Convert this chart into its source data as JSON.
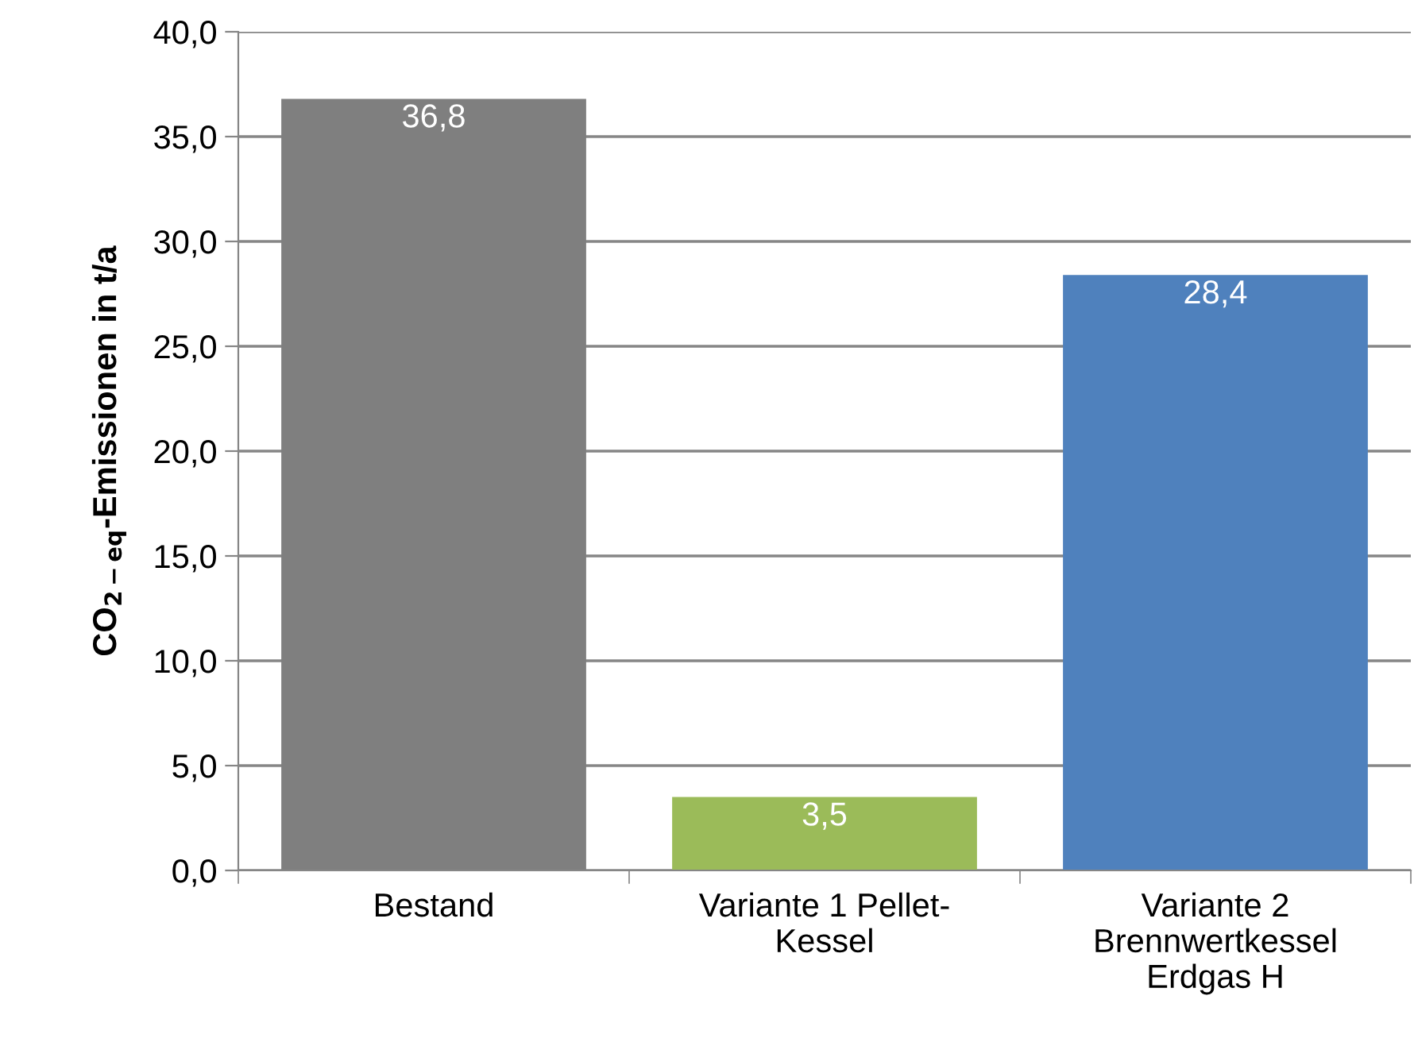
{
  "chart_data": {
    "type": "bar",
    "ylabel": "CO$_{2−eq}$-Emissionen in t/a",
    "categories": [
      "Bestand",
      "Variante 1 Pellet-Kessel",
      "Variante 2 Brennwertkessel Erdgas H"
    ],
    "values": [
      36.8,
      3.5,
      28.4
    ],
    "colors": [
      "#7f7f7f",
      "#9bbb59",
      "#4f81bd"
    ],
    "value_labels": [
      "36,8",
      "3,5",
      "28,4"
    ],
    "ylim": [
      0,
      40
    ],
    "yticks": [
      {
        "value": 0,
        "label": "0,0"
      },
      {
        "value": 5,
        "label": "5,0"
      },
      {
        "value": 10,
        "label": "10,0"
      },
      {
        "value": 15,
        "label": "15,0"
      },
      {
        "value": 20,
        "label": "20,0"
      },
      {
        "value": 25,
        "label": "25,0"
      },
      {
        "value": 30,
        "label": "30,0"
      },
      {
        "value": 35,
        "label": "35,0"
      },
      {
        "value": 40,
        "label": "40,0"
      }
    ],
    "grid": "y",
    "legend": false
  }
}
